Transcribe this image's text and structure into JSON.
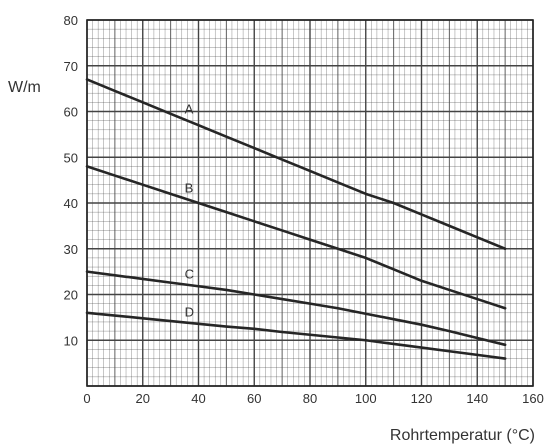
{
  "chart_data": {
    "type": "line",
    "title": "",
    "xlabel": "Rohrtemperatur (°C)",
    "ylabel": "W/m",
    "xlim": [
      0,
      160
    ],
    "ylim": [
      0,
      80
    ],
    "xticks": [
      0,
      20,
      40,
      60,
      80,
      100,
      120,
      140,
      160
    ],
    "yticks": [
      10,
      20,
      30,
      40,
      50,
      60,
      70,
      80
    ],
    "x_tick_labels": [
      "0",
      "20",
      "40",
      "60",
      "80",
      "100",
      "120",
      "140",
      "160"
    ],
    "y_tick_labels": [
      "10",
      "20",
      "30",
      "40",
      "50",
      "60",
      "70",
      "80"
    ],
    "grid": true,
    "x": [
      0,
      10,
      20,
      30,
      40,
      50,
      60,
      70,
      80,
      90,
      100,
      110,
      120,
      130,
      140,
      150
    ],
    "series": [
      {
        "name": "A",
        "values": [
          67,
          64.5,
          62,
          59.5,
          57,
          54.5,
          52,
          49.5,
          47,
          44.5,
          42,
          40,
          37.5,
          35,
          32.5,
          30
        ]
      },
      {
        "name": "B",
        "values": [
          48,
          46,
          44,
          42,
          40,
          38,
          36,
          34,
          32,
          30,
          28,
          25.5,
          23,
          21,
          19,
          17
        ]
      },
      {
        "name": "C",
        "values": [
          25,
          24.2,
          23.4,
          22.6,
          21.8,
          21,
          20,
          19,
          18,
          17,
          15.8,
          14.6,
          13.4,
          12,
          10.5,
          9
        ]
      },
      {
        "name": "D",
        "values": [
          16,
          15.4,
          14.8,
          14.2,
          13.6,
          13,
          12.5,
          11.8,
          11.2,
          10.6,
          10,
          9.2,
          8.4,
          7.6,
          6.8,
          6
        ]
      }
    ],
    "line_color": "#262626",
    "grid_color": "#444444"
  }
}
